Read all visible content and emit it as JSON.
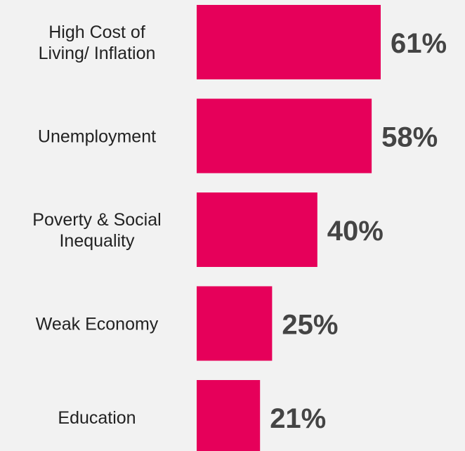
{
  "chart_data": {
    "type": "bar",
    "orientation": "horizontal",
    "categories": [
      "High Cost of\nLiving/ Inflation",
      "Unemployment",
      "Poverty & Social\nInequality",
      "Weak Economy",
      "Education"
    ],
    "values": [
      61,
      58,
      40,
      25,
      21
    ],
    "value_labels": [
      "61%",
      "58%",
      "40%",
      "25%",
      "21%"
    ],
    "xlim": [
      0,
      100
    ],
    "grid": false,
    "legend": "none",
    "bar_color": "#e6005a",
    "background": "#f2f2f2"
  }
}
